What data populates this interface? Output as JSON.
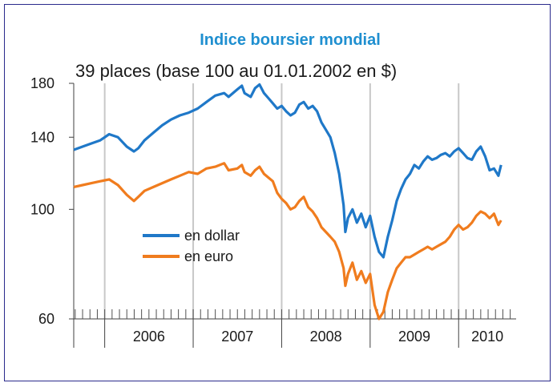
{
  "chart_data": {
    "type": "line",
    "title": "Indice boursier mondial",
    "subtitle": "39 places (base 100 au 01.01.2002 en $)",
    "y_scale": "log",
    "ylim": [
      60,
      180
    ],
    "yticks": [
      "180",
      "140",
      "100",
      "60"
    ],
    "ytick_values": [
      180,
      140,
      100,
      60
    ],
    "xlim": [
      2005.65,
      2010.65
    ],
    "year_labels": [
      "2006",
      "2007",
      "2008",
      "2009",
      "2010"
    ],
    "year_starts": [
      2006,
      2007,
      2008,
      2009,
      2010
    ],
    "grid": "vertical",
    "legend_position": "center-left",
    "series": [
      {
        "name": "en dollar",
        "color": "#1f78c8",
        "x": [
          2005.65,
          2005.75,
          2005.85,
          2005.95,
          2006.05,
          2006.15,
          2006.25,
          2006.33,
          2006.38,
          2006.45,
          2006.55,
          2006.65,
          2006.75,
          2006.85,
          2006.95,
          2007.05,
          2007.15,
          2007.25,
          2007.35,
          2007.4,
          2007.5,
          2007.55,
          2007.58,
          2007.65,
          2007.7,
          2007.75,
          2007.8,
          2007.85,
          2007.9,
          2007.95,
          2008.0,
          2008.05,
          2008.1,
          2008.15,
          2008.2,
          2008.25,
          2008.3,
          2008.35,
          2008.4,
          2008.45,
          2008.5,
          2008.55,
          2008.6,
          2008.65,
          2008.7,
          2008.72,
          2008.75,
          2008.8,
          2008.85,
          2008.9,
          2008.95,
          2009.0,
          2009.05,
          2009.1,
          2009.15,
          2009.2,
          2009.25,
          2009.3,
          2009.35,
          2009.4,
          2009.45,
          2009.5,
          2009.55,
          2009.6,
          2009.65,
          2009.7,
          2009.75,
          2009.8,
          2009.85,
          2009.9,
          2009.95,
          2010.0,
          2010.05,
          2010.1,
          2010.15,
          2010.2,
          2010.25,
          2010.3,
          2010.35,
          2010.4,
          2010.45,
          2010.48
        ],
        "values": [
          132,
          134,
          136,
          138,
          142,
          140,
          134,
          131,
          133,
          138,
          143,
          148,
          152,
          155,
          157,
          160,
          165,
          170,
          172,
          169,
          175,
          178,
          172,
          169,
          176,
          179,
          172,
          168,
          164,
          160,
          162,
          158,
          155,
          157,
          163,
          165,
          160,
          162,
          158,
          150,
          145,
          140,
          130,
          118,
          102,
          90,
          96,
          100,
          94,
          98,
          92,
          97,
          88,
          82,
          80,
          88,
          95,
          104,
          110,
          115,
          118,
          123,
          121,
          125,
          128,
          126,
          127,
          129,
          130,
          128,
          131,
          133,
          130,
          127,
          126,
          131,
          134,
          128,
          120,
          121,
          117,
          123
        ]
      },
      {
        "name": "en euro",
        "color": "#f07c1e",
        "x": [
          2005.65,
          2005.75,
          2005.85,
          2005.95,
          2006.05,
          2006.15,
          2006.25,
          2006.33,
          2006.38,
          2006.45,
          2006.55,
          2006.65,
          2006.75,
          2006.85,
          2006.95,
          2007.05,
          2007.15,
          2007.25,
          2007.35,
          2007.4,
          2007.5,
          2007.55,
          2007.58,
          2007.65,
          2007.7,
          2007.75,
          2007.8,
          2007.85,
          2007.9,
          2007.95,
          2008.0,
          2008.05,
          2008.1,
          2008.15,
          2008.2,
          2008.25,
          2008.3,
          2008.35,
          2008.4,
          2008.45,
          2008.5,
          2008.55,
          2008.6,
          2008.65,
          2008.7,
          2008.72,
          2008.75,
          2008.8,
          2008.85,
          2008.9,
          2008.95,
          2009.0,
          2009.05,
          2009.1,
          2009.15,
          2009.2,
          2009.25,
          2009.3,
          2009.35,
          2009.4,
          2009.45,
          2009.5,
          2009.55,
          2009.6,
          2009.65,
          2009.7,
          2009.75,
          2009.8,
          2009.85,
          2009.9,
          2009.95,
          2010.0,
          2010.05,
          2010.1,
          2010.15,
          2010.2,
          2010.25,
          2010.3,
          2010.35,
          2010.4,
          2010.45,
          2010.48
        ],
        "values": [
          111,
          112,
          113,
          114,
          115,
          112,
          107,
          104,
          106,
          109,
          111,
          113,
          115,
          117,
          119,
          118,
          121,
          122,
          124,
          120,
          121,
          123,
          119,
          117,
          120,
          122,
          118,
          116,
          114,
          108,
          105,
          103,
          100,
          101,
          104,
          106,
          101,
          99,
          96,
          92,
          90,
          88,
          86,
          82,
          76,
          70,
          74,
          78,
          72,
          75,
          71,
          74,
          64,
          60,
          62,
          68,
          72,
          76,
          78,
          80,
          80,
          81,
          82,
          83,
          84,
          83,
          84,
          85,
          86,
          88,
          91,
          93,
          91,
          92,
          94,
          97,
          99,
          98,
          96,
          98,
          93,
          95
        ]
      }
    ]
  }
}
